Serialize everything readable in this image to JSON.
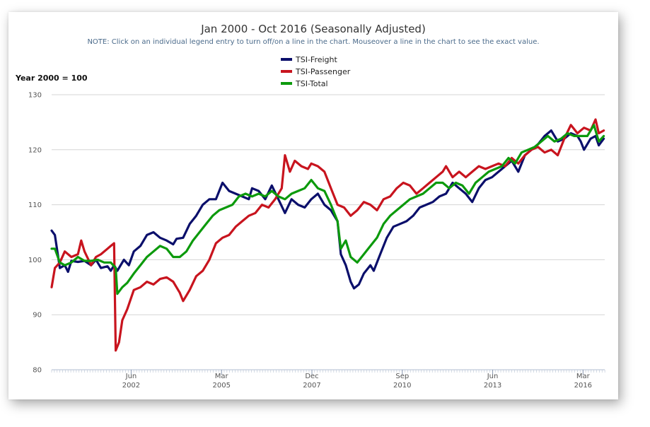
{
  "chart_data": {
    "type": "line",
    "title": "Jan 2000 - Oct 2016 (Seasonally Adjusted)",
    "subtitle": "NOTE: Click on an individual legend entry to turn off/on a line in the chart. Mouseover a line in the chart to see the exact value.",
    "ylabel": "Year 2000 = 100",
    "ylim": [
      80,
      130
    ],
    "yticks": [
      80,
      90,
      100,
      110,
      120,
      130
    ],
    "xlim": [
      2000.0,
      2016.83
    ],
    "xticks": [
      {
        "x": 2002.42,
        "month": "Jun",
        "year": "2002"
      },
      {
        "x": 2005.17,
        "month": "Mar",
        "year": "2005"
      },
      {
        "x": 2007.92,
        "month": "Dec",
        "year": "2007"
      },
      {
        "x": 2010.67,
        "month": "Sep",
        "year": "2010"
      },
      {
        "x": 2013.42,
        "month": "Jun",
        "year": "2013"
      },
      {
        "x": 2016.17,
        "month": "Mar",
        "year": "2016"
      }
    ],
    "grid": true,
    "legend_position": "top-center",
    "series": [
      {
        "name": "TSI-Freight",
        "color": "#0b0f6b",
        "points": [
          [
            2000.0,
            105.3
          ],
          [
            2000.1,
            104.5
          ],
          [
            2000.25,
            98.5
          ],
          [
            2000.4,
            99
          ],
          [
            2000.5,
            97.8
          ],
          [
            2000.6,
            99.8
          ],
          [
            2000.8,
            99.6
          ],
          [
            2001.0,
            99.8
          ],
          [
            2001.2,
            99
          ],
          [
            2001.35,
            100
          ],
          [
            2001.5,
            98.5
          ],
          [
            2001.7,
            98.8
          ],
          [
            2001.8,
            98
          ],
          [
            2001.9,
            99
          ],
          [
            2002.0,
            98
          ],
          [
            2002.2,
            100
          ],
          [
            2002.35,
            99
          ],
          [
            2002.5,
            101.5
          ],
          [
            2002.7,
            102.5
          ],
          [
            2002.9,
            104.5
          ],
          [
            2003.1,
            105
          ],
          [
            2003.3,
            104
          ],
          [
            2003.5,
            103.5
          ],
          [
            2003.7,
            102.8
          ],
          [
            2003.8,
            103.8
          ],
          [
            2004.0,
            104
          ],
          [
            2004.2,
            106.5
          ],
          [
            2004.4,
            108
          ],
          [
            2004.6,
            110
          ],
          [
            2004.8,
            111
          ],
          [
            2005.0,
            111
          ],
          [
            2005.2,
            114
          ],
          [
            2005.4,
            112.5
          ],
          [
            2005.6,
            112
          ],
          [
            2005.8,
            111.5
          ],
          [
            2006.0,
            111
          ],
          [
            2006.1,
            113
          ],
          [
            2006.3,
            112.5
          ],
          [
            2006.5,
            111
          ],
          [
            2006.7,
            113.5
          ],
          [
            2006.9,
            111
          ],
          [
            2007.1,
            108.5
          ],
          [
            2007.3,
            111
          ],
          [
            2007.5,
            110
          ],
          [
            2007.7,
            109.5
          ],
          [
            2007.9,
            111
          ],
          [
            2008.1,
            112
          ],
          [
            2008.3,
            110
          ],
          [
            2008.5,
            109
          ],
          [
            2008.7,
            107
          ],
          [
            2008.8,
            101
          ],
          [
            2008.95,
            99
          ],
          [
            2009.1,
            96
          ],
          [
            2009.2,
            94.8
          ],
          [
            2009.35,
            95.5
          ],
          [
            2009.5,
            97.5
          ],
          [
            2009.7,
            99
          ],
          [
            2009.8,
            98
          ],
          [
            2010.0,
            101
          ],
          [
            2010.2,
            104
          ],
          [
            2010.4,
            106
          ],
          [
            2010.6,
            106.5
          ],
          [
            2010.8,
            107
          ],
          [
            2011.0,
            108
          ],
          [
            2011.2,
            109.5
          ],
          [
            2011.4,
            110
          ],
          [
            2011.6,
            110.5
          ],
          [
            2011.8,
            111.5
          ],
          [
            2012.0,
            112
          ],
          [
            2012.2,
            114
          ],
          [
            2012.4,
            113
          ],
          [
            2012.6,
            112
          ],
          [
            2012.8,
            110.5
          ],
          [
            2013.0,
            113
          ],
          [
            2013.2,
            114.5
          ],
          [
            2013.4,
            115
          ],
          [
            2013.6,
            116
          ],
          [
            2013.8,
            117
          ],
          [
            2014.0,
            118
          ],
          [
            2014.2,
            116
          ],
          [
            2014.4,
            119
          ],
          [
            2014.6,
            120
          ],
          [
            2014.8,
            121
          ],
          [
            2015.0,
            122.5
          ],
          [
            2015.2,
            123.5
          ],
          [
            2015.4,
            121.5
          ],
          [
            2015.6,
            122
          ],
          [
            2015.8,
            123
          ],
          [
            2016.0,
            122.5
          ],
          [
            2016.1,
            121.5
          ],
          [
            2016.2,
            120
          ],
          [
            2016.4,
            122
          ],
          [
            2016.55,
            122.5
          ],
          [
            2016.65,
            120.8
          ],
          [
            2016.8,
            122
          ]
        ]
      },
      {
        "name": "TSI-Passenger",
        "color": "#c8141e",
        "points": [
          [
            2000.0,
            95
          ],
          [
            2000.1,
            98.5
          ],
          [
            2000.25,
            99.5
          ],
          [
            2000.4,
            101.5
          ],
          [
            2000.6,
            100.5
          ],
          [
            2000.8,
            101
          ],
          [
            2000.9,
            103.5
          ],
          [
            2001.0,
            101.5
          ],
          [
            2001.2,
            99
          ],
          [
            2001.35,
            100.5
          ],
          [
            2001.5,
            101
          ],
          [
            2001.7,
            102
          ],
          [
            2001.8,
            102.5
          ],
          [
            2001.9,
            103
          ],
          [
            2001.95,
            83.5
          ],
          [
            2002.05,
            85
          ],
          [
            2002.15,
            89
          ],
          [
            2002.3,
            91
          ],
          [
            2002.5,
            94.5
          ],
          [
            2002.7,
            95
          ],
          [
            2002.9,
            96
          ],
          [
            2003.1,
            95.5
          ],
          [
            2003.3,
            96.5
          ],
          [
            2003.5,
            96.8
          ],
          [
            2003.7,
            96
          ],
          [
            2003.9,
            94
          ],
          [
            2004.0,
            92.5
          ],
          [
            2004.2,
            94.5
          ],
          [
            2004.4,
            97
          ],
          [
            2004.6,
            98
          ],
          [
            2004.8,
            100
          ],
          [
            2005.0,
            103
          ],
          [
            2005.2,
            104
          ],
          [
            2005.4,
            104.5
          ],
          [
            2005.6,
            106
          ],
          [
            2005.8,
            107
          ],
          [
            2006.0,
            108
          ],
          [
            2006.2,
            108.5
          ],
          [
            2006.4,
            110
          ],
          [
            2006.6,
            109.5
          ],
          [
            2006.8,
            111
          ],
          [
            2007.0,
            113
          ],
          [
            2007.1,
            119
          ],
          [
            2007.25,
            116
          ],
          [
            2007.4,
            118
          ],
          [
            2007.6,
            117
          ],
          [
            2007.8,
            116.5
          ],
          [
            2007.9,
            117.5
          ],
          [
            2008.1,
            117
          ],
          [
            2008.3,
            116
          ],
          [
            2008.5,
            113
          ],
          [
            2008.7,
            110
          ],
          [
            2008.9,
            109.5
          ],
          [
            2009.1,
            108
          ],
          [
            2009.3,
            109
          ],
          [
            2009.5,
            110.5
          ],
          [
            2009.7,
            110
          ],
          [
            2009.9,
            109
          ],
          [
            2010.1,
            111
          ],
          [
            2010.3,
            111.5
          ],
          [
            2010.5,
            113
          ],
          [
            2010.7,
            114
          ],
          [
            2010.9,
            113.5
          ],
          [
            2011.1,
            112
          ],
          [
            2011.3,
            113
          ],
          [
            2011.5,
            114
          ],
          [
            2011.7,
            115
          ],
          [
            2011.9,
            116
          ],
          [
            2012.0,
            117
          ],
          [
            2012.2,
            115
          ],
          [
            2012.4,
            116
          ],
          [
            2012.6,
            115
          ],
          [
            2012.8,
            116
          ],
          [
            2013.0,
            117
          ],
          [
            2013.2,
            116.5
          ],
          [
            2013.4,
            117
          ],
          [
            2013.6,
            117.5
          ],
          [
            2013.8,
            117
          ],
          [
            2014.0,
            118.5
          ],
          [
            2014.2,
            117.5
          ],
          [
            2014.4,
            119
          ],
          [
            2014.6,
            120
          ],
          [
            2014.8,
            120.5
          ],
          [
            2015.0,
            119.5
          ],
          [
            2015.2,
            120
          ],
          [
            2015.4,
            119
          ],
          [
            2015.6,
            122
          ],
          [
            2015.8,
            124.5
          ],
          [
            2016.0,
            123
          ],
          [
            2016.2,
            124
          ],
          [
            2016.4,
            123.5
          ],
          [
            2016.55,
            125.5
          ],
          [
            2016.65,
            123
          ],
          [
            2016.8,
            123.5
          ]
        ]
      },
      {
        "name": "TSI-Total",
        "color": "#0c9a0c",
        "points": [
          [
            2000.0,
            102
          ],
          [
            2000.1,
            102
          ],
          [
            2000.25,
            99.5
          ],
          [
            2000.4,
            99
          ],
          [
            2000.6,
            99.5
          ],
          [
            2000.8,
            100.5
          ],
          [
            2001.0,
            99.8
          ],
          [
            2001.2,
            99.8
          ],
          [
            2001.4,
            100
          ],
          [
            2001.6,
            99.5
          ],
          [
            2001.8,
            99.5
          ],
          [
            2001.95,
            98.5
          ],
          [
            2002.0,
            93.8
          ],
          [
            2002.15,
            95
          ],
          [
            2002.3,
            95.8
          ],
          [
            2002.5,
            97.5
          ],
          [
            2002.7,
            99
          ],
          [
            2002.9,
            100.5
          ],
          [
            2003.1,
            101.5
          ],
          [
            2003.3,
            102.5
          ],
          [
            2003.5,
            102
          ],
          [
            2003.7,
            100.5
          ],
          [
            2003.9,
            100.5
          ],
          [
            2004.1,
            101.5
          ],
          [
            2004.3,
            103.5
          ],
          [
            2004.5,
            105
          ],
          [
            2004.7,
            106.5
          ],
          [
            2004.9,
            108
          ],
          [
            2005.1,
            109
          ],
          [
            2005.3,
            109.5
          ],
          [
            2005.5,
            110
          ],
          [
            2005.7,
            111.5
          ],
          [
            2005.9,
            112
          ],
          [
            2006.1,
            111.5
          ],
          [
            2006.3,
            112
          ],
          [
            2006.5,
            111.5
          ],
          [
            2006.7,
            112.5
          ],
          [
            2006.9,
            111.5
          ],
          [
            2007.1,
            111
          ],
          [
            2007.3,
            112
          ],
          [
            2007.5,
            112.5
          ],
          [
            2007.7,
            113
          ],
          [
            2007.9,
            114.5
          ],
          [
            2008.1,
            113
          ],
          [
            2008.3,
            112.5
          ],
          [
            2008.5,
            110
          ],
          [
            2008.7,
            107
          ],
          [
            2008.8,
            102
          ],
          [
            2008.95,
            103.5
          ],
          [
            2009.1,
            100.5
          ],
          [
            2009.3,
            99.5
          ],
          [
            2009.5,
            101
          ],
          [
            2009.7,
            102.5
          ],
          [
            2009.9,
            104
          ],
          [
            2010.1,
            106.5
          ],
          [
            2010.3,
            108
          ],
          [
            2010.5,
            109
          ],
          [
            2010.7,
            110
          ],
          [
            2010.9,
            111
          ],
          [
            2011.1,
            111.5
          ],
          [
            2011.3,
            112
          ],
          [
            2011.5,
            113
          ],
          [
            2011.7,
            114
          ],
          [
            2011.9,
            114
          ],
          [
            2012.1,
            113
          ],
          [
            2012.3,
            114
          ],
          [
            2012.5,
            113.5
          ],
          [
            2012.7,
            112
          ],
          [
            2012.9,
            114
          ],
          [
            2013.1,
            115
          ],
          [
            2013.3,
            116
          ],
          [
            2013.5,
            116.5
          ],
          [
            2013.7,
            117
          ],
          [
            2013.9,
            118.5
          ],
          [
            2014.1,
            117.5
          ],
          [
            2014.3,
            119.5
          ],
          [
            2014.5,
            120
          ],
          [
            2014.7,
            120.5
          ],
          [
            2014.9,
            121.5
          ],
          [
            2015.1,
            122.5
          ],
          [
            2015.3,
            121.5
          ],
          [
            2015.5,
            122
          ],
          [
            2015.7,
            123
          ],
          [
            2015.9,
            122.5
          ],
          [
            2016.1,
            122.5
          ],
          [
            2016.3,
            122.5
          ],
          [
            2016.5,
            124.5
          ],
          [
            2016.65,
            121.5
          ],
          [
            2016.8,
            122.5
          ]
        ]
      }
    ]
  }
}
